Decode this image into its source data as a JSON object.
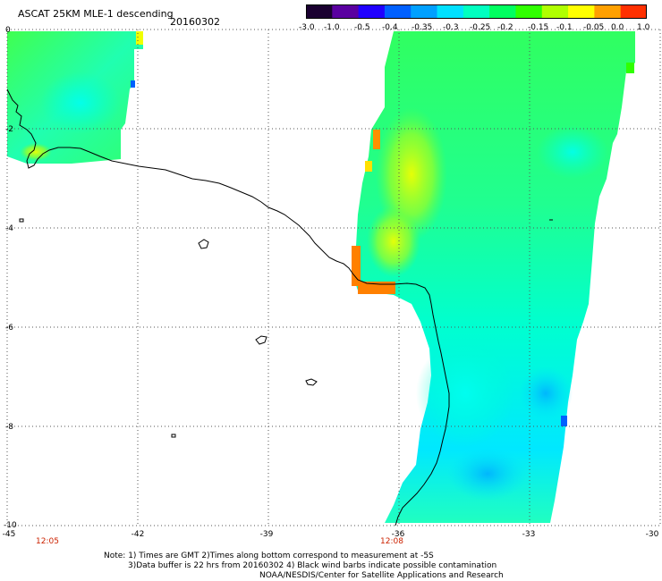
{
  "header": {
    "title": "ASCAT 25KM MLE-1 descending",
    "date": "20160302"
  },
  "colorbar": {
    "labels": [
      "-3.0",
      "-1.0",
      "-0.5",
      "-0.4",
      "-0.35",
      "-0.3",
      "-0.25",
      "-0.2",
      "-0.15",
      "-0.1",
      "-0.05",
      "0.0",
      "1.0"
    ],
    "colors": [
      "#1a0030",
      "#5a00a0",
      "#2000ff",
      "#0060ff",
      "#00a0ff",
      "#00e0ff",
      "#00ffc0",
      "#00ff60",
      "#30ff00",
      "#b0ff00",
      "#ffff00",
      "#ffa000",
      "#ff3000"
    ]
  },
  "map": {
    "lon_range": [
      -45,
      -30
    ],
    "lat_range": [
      -10,
      0
    ],
    "lon_ticks": [
      "-45",
      "-42",
      "-39",
      "-36",
      "-33",
      "-30"
    ],
    "lat_ticks": [
      "0",
      "-2",
      "-4",
      "-6",
      "-8",
      "-10"
    ],
    "grid": "dotted",
    "background_color": "#ffffff",
    "coastline_color": "#000000"
  },
  "time_labels": [
    "12:05",
    "12:08"
  ],
  "notes": {
    "line1": "Note: 1) Times are GMT 2)Times along bottom correspond to measurement at -5S",
    "line2": "3)Data buffer is 22 hrs from 20160302 4) Black wind barbs indicate possible contamination",
    "line3": "NOAA/NESDIS/Center for Satellite Applications and Research"
  }
}
